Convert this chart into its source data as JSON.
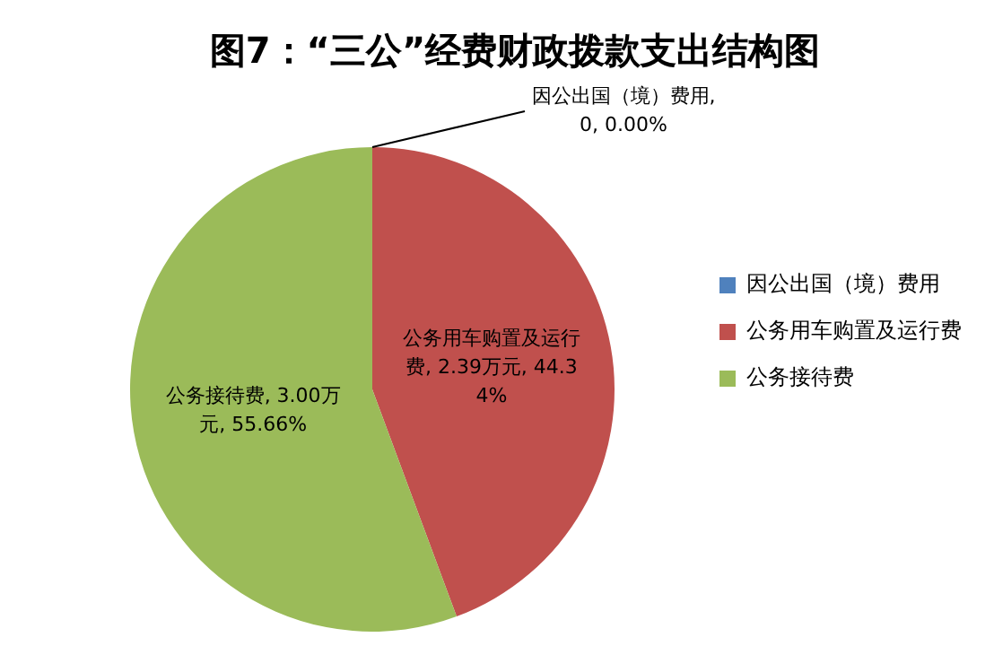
{
  "chart_data": {
    "type": "pie",
    "title": "图7：“三公”经费财政拨款支出结构图",
    "categories": [
      "因公出国（境）费用",
      "公务用车购置及运行费",
      "公务接待费"
    ],
    "values": [
      0,
      2.39,
      3.0
    ],
    "colors": [
      "#4f81bd",
      "#c0504d",
      "#9bbb59"
    ],
    "value_labels": [
      "因公出国（境）费用, 0, 0.00%",
      "公务用车购置及运行费, 2.39万元, 44.34%",
      "公务接待费, 3.00万元, 55.66%"
    ],
    "legend": "right"
  }
}
